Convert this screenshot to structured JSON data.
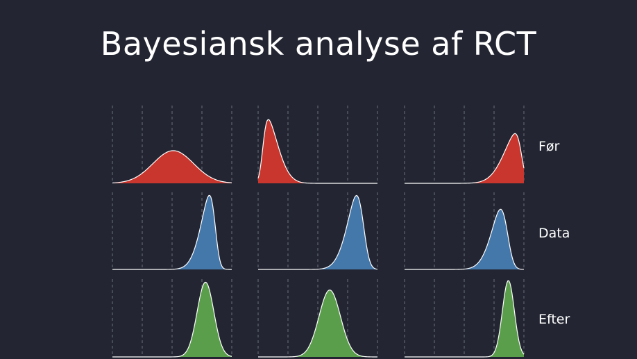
{
  "title": "Bayesiansk analyse af RCT",
  "rows": [
    {
      "label": "Før",
      "color": "#c8362e",
      "distributions": [
        {
          "mu": 0.51,
          "sigma": 0.17,
          "skew": 0,
          "height": 0.42
        },
        {
          "mu": 0.04,
          "sigma": 0.11,
          "skew": 4,
          "height": 0.82
        },
        {
          "mu": 0.98,
          "sigma": 0.13,
          "skew": -4,
          "height": 0.64
        }
      ]
    },
    {
      "label": "Data",
      "color": "#4477aa",
      "distributions": [
        {
          "mu": 0.86,
          "sigma": 0.1,
          "skew": -3,
          "height": 0.96
        },
        {
          "mu": 0.88,
          "sigma": 0.11,
          "skew": -2.5,
          "height": 0.96
        },
        {
          "mu": 0.86,
          "sigma": 0.11,
          "skew": -2.5,
          "height": 0.78
        }
      ]
    },
    {
      "label": "Efter",
      "color": "#5a9e4b",
      "distributions": [
        {
          "mu": 0.78,
          "sigma": 0.07,
          "skew": 0,
          "height": 0.96
        },
        {
          "mu": 0.6,
          "sigma": 0.09,
          "skew": 0,
          "height": 0.86
        },
        {
          "mu": 0.87,
          "sigma": 0.05,
          "skew": 0,
          "height": 0.98
        }
      ]
    }
  ]
}
